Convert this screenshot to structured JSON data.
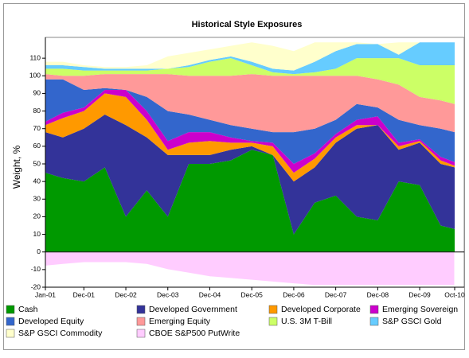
{
  "chart_data": {
    "type": "stacked_area",
    "title": "Historical Style Exposures",
    "ylabel": "Weight, %",
    "x": [
      "Jan-01",
      "Jun-01",
      "Dec-01",
      "Jun-02",
      "Dec-02",
      "Jun-03",
      "Dec-03",
      "Jun-04",
      "Dec-04",
      "Jun-05",
      "Dec-05",
      "Jun-06",
      "Dec-06",
      "Jun-07",
      "Dec-07",
      "Jun-08",
      "Dec-08",
      "Jun-09",
      "Dec-09",
      "Jun-10",
      "Oct-10"
    ],
    "xticks": [
      "Jan-01",
      "Dec-01",
      "Dec-02",
      "Dec-03",
      "Dec-04",
      "Dec-05",
      "Dec-06",
      "Dec-07",
      "Dec-08",
      "Dec-09",
      "Oct-10"
    ],
    "ylim": [
      -20,
      120
    ],
    "yticks": [
      -20,
      -10,
      0,
      10,
      20,
      30,
      40,
      50,
      60,
      70,
      80,
      90,
      100,
      110
    ],
    "series": [
      {
        "name": "Cash",
        "color": "#009900",
        "values": [
          45,
          42,
          40,
          48,
          20,
          35,
          20,
          50,
          50,
          52,
          58,
          55,
          10,
          28,
          32,
          20,
          18,
          40,
          38,
          15,
          13
        ]
      },
      {
        "name": "Developed Government",
        "color": "#333399",
        "values": [
          23,
          23,
          30,
          30,
          52,
          30,
          35,
          5,
          5,
          6,
          2,
          0,
          30,
          20,
          30,
          50,
          54,
          18,
          24,
          35,
          35
        ]
      },
      {
        "name": "Developed Corporate",
        "color": "#ff9900",
        "values": [
          4,
          11,
          10,
          12,
          16,
          10,
          3,
          7,
          8,
          4,
          2,
          5,
          5,
          5,
          3,
          2,
          0,
          2,
          1,
          2,
          1
        ]
      },
      {
        "name": "Emerging Sovereign",
        "color": "#cc00cc",
        "values": [
          2,
          3,
          2,
          2,
          4,
          5,
          5,
          6,
          5,
          3,
          1,
          2,
          5,
          3,
          2,
          3,
          5,
          2,
          1,
          2,
          2
        ]
      },
      {
        "name": "Developed Equity",
        "color": "#3366cc",
        "values": [
          24,
          19,
          10,
          1,
          0,
          8,
          17,
          10,
          7,
          7,
          7,
          6,
          18,
          14,
          8,
          9,
          5,
          13,
          8,
          16,
          17
        ]
      },
      {
        "name": "Emerging Equity",
        "color": "#ff9999",
        "values": [
          3,
          2,
          8,
          8,
          9,
          13,
          21,
          22,
          25,
          28,
          31,
          32,
          32,
          30,
          25,
          16,
          16,
          20,
          16,
          16,
          16
        ]
      },
      {
        "name": "U.S. 3M T-Bill",
        "color": "#ccff66",
        "values": [
          3,
          4,
          3,
          2,
          2,
          2,
          3,
          5,
          8,
          10,
          5,
          2,
          1,
          2,
          4,
          10,
          12,
          15,
          18,
          20,
          22
        ]
      },
      {
        "name": "S&P GSCI Gold",
        "color": "#66ccff",
        "values": [
          2,
          2,
          2,
          1,
          1,
          1,
          0,
          1,
          1,
          1,
          2,
          2,
          2,
          6,
          10,
          8,
          8,
          2,
          13,
          13,
          13
        ]
      },
      {
        "name": "S&P GSCI Commodity",
        "color": "#ffffcc",
        "values": [
          2,
          2,
          1,
          1,
          1,
          2,
          7,
          7,
          6,
          6,
          11,
          13,
          11,
          11,
          5,
          1,
          0,
          7,
          0,
          0,
          0
        ]
      },
      {
        "name": "CBOE S&P500 PutWrite",
        "color": "#ffccff",
        "values": [
          -8,
          -7,
          -6,
          -6,
          -6,
          -7,
          -10,
          -12,
          -14,
          -15,
          -16,
          -17,
          -18,
          -19,
          -19,
          -19,
          -19,
          -19,
          -19,
          -19,
          -19
        ]
      }
    ]
  }
}
